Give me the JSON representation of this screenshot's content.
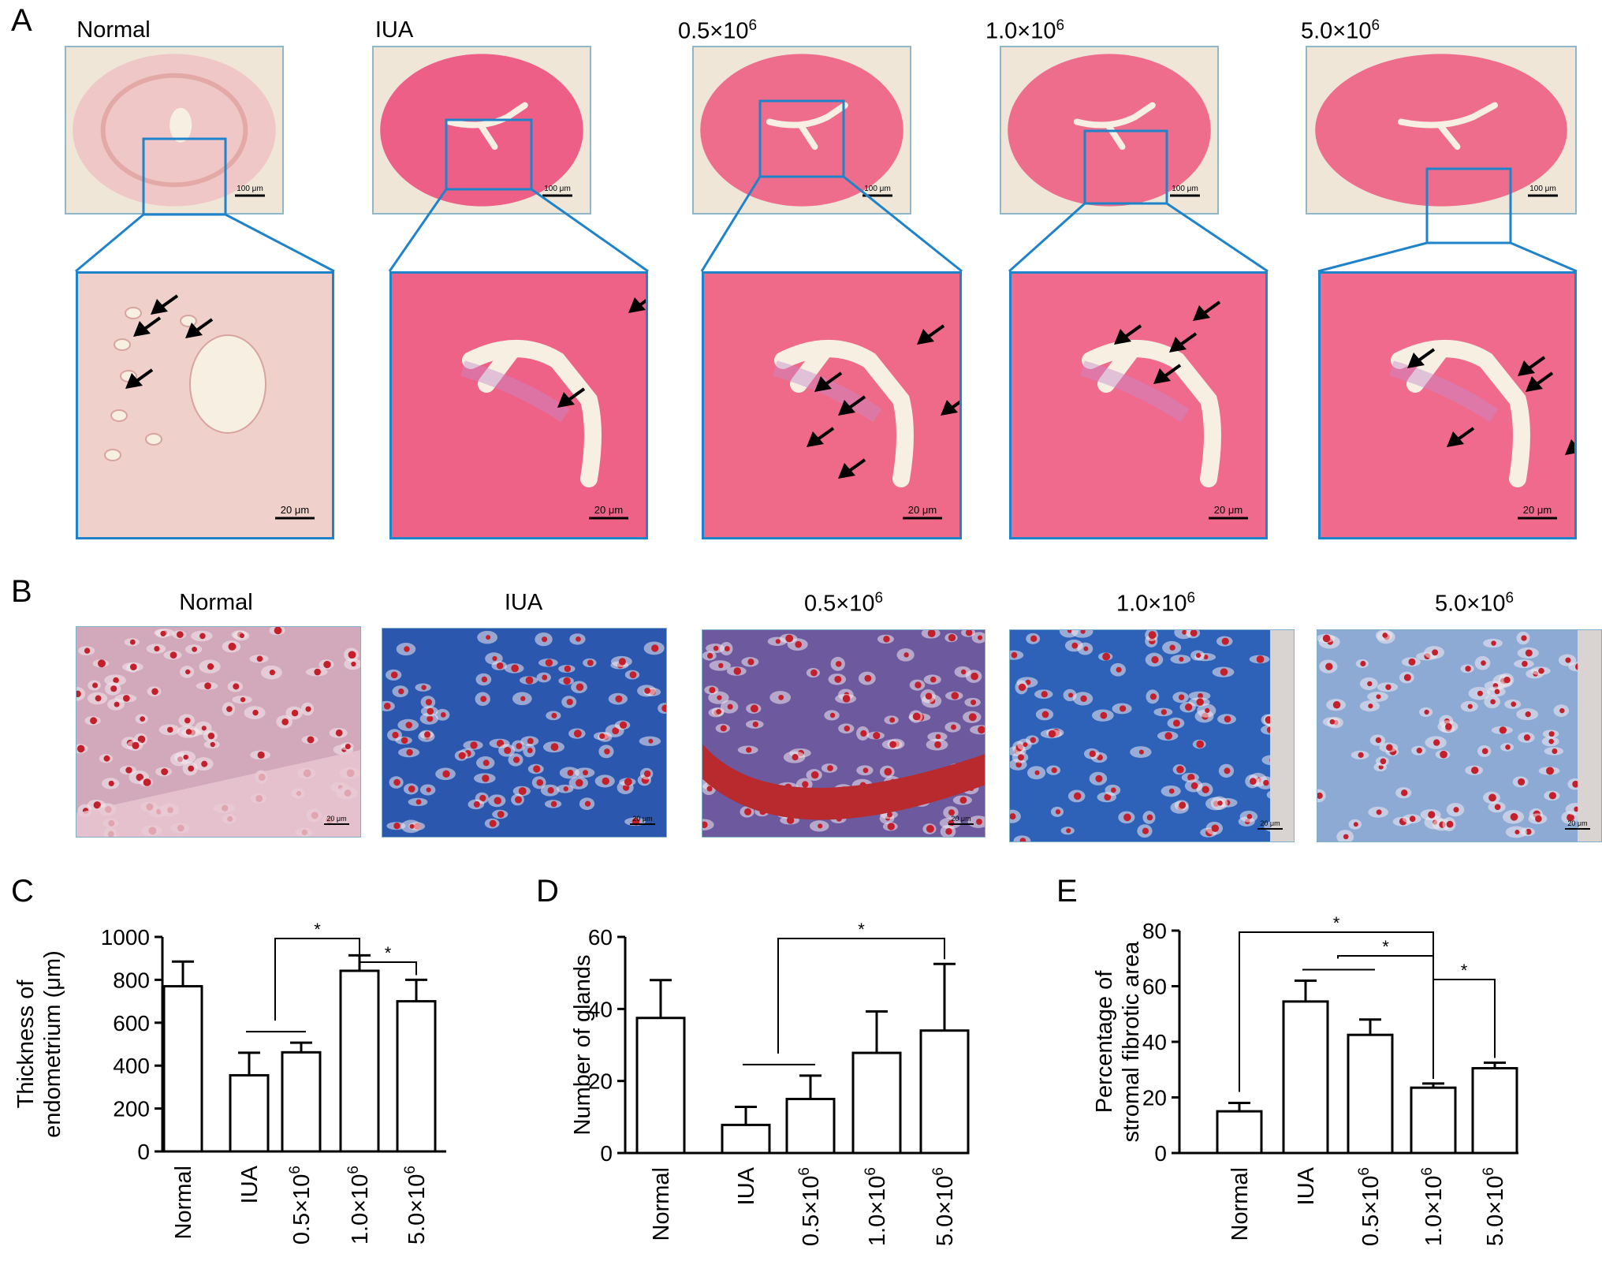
{
  "panels": {
    "a": {
      "letter": "A",
      "scale_overview": "100 μm",
      "scale_zoom": "20 μm"
    },
    "b": {
      "letter": "B",
      "scale": "20 μm"
    },
    "c": {
      "letter": "C"
    },
    "d": {
      "letter": "D"
    },
    "e": {
      "letter": "E"
    }
  },
  "groups": [
    {
      "base": "Normal",
      "exp": ""
    },
    {
      "base": "IUA",
      "exp": ""
    },
    {
      "base": "0.5×10",
      "exp": "6"
    },
    {
      "base": "1.0×10",
      "exp": "6"
    },
    {
      "base": "5.0×10",
      "exp": "6"
    }
  ],
  "colors": {
    "he_normal": "#efc7c6",
    "he_iua": "#ee5f87",
    "he_pink": "#ef6d8c",
    "lumen": "#f6efe2",
    "zoom_border": "#1f83c9",
    "collagen_blue": "#1f5bb5",
    "cell_red": "#c4202c",
    "epithelium_red": "#b82a2e"
  },
  "chart_data": [
    {
      "type": "bar",
      "panel": "C",
      "ylabel_lines": [
        "Thickness of",
        "endometrium (μm)"
      ],
      "categories": [
        "Normal",
        "IUA",
        "0.5×10",
        "1.0×10",
        "5.0×10"
      ],
      "category_exp": [
        "",
        "",
        "6",
        "6",
        "6"
      ],
      "values": [
        770,
        355,
        462,
        842,
        700
      ],
      "errors": [
        115,
        105,
        45,
        72,
        100
      ],
      "ylim": [
        0,
        1000
      ],
      "yticks": [
        0,
        200,
        400,
        600,
        800,
        1000
      ],
      "significance": [
        {
          "from": 1,
          "to": 3,
          "label": "*"
        },
        {
          "from": 3,
          "to": 4,
          "label": "*"
        }
      ],
      "group_line": [
        1,
        2
      ]
    },
    {
      "type": "bar",
      "panel": "D",
      "ylabel_lines": [
        "Number of glands"
      ],
      "categories": [
        "Normal",
        "IUA",
        "0.5×10",
        "1.0×10",
        "5.0×10"
      ],
      "category_exp": [
        "",
        "",
        "6",
        "6",
        "6"
      ],
      "values": [
        37.5,
        7.8,
        15.0,
        27.8,
        34.0
      ],
      "errors": [
        10.5,
        5.0,
        6.5,
        11.5,
        18.5
      ],
      "ylim": [
        0,
        60
      ],
      "yticks": [
        0,
        20,
        40,
        60
      ],
      "significance": [
        {
          "from": 1,
          "to": 4,
          "label": "*"
        }
      ],
      "group_line": [
        1,
        2
      ]
    },
    {
      "type": "bar",
      "panel": "E",
      "ylabel_lines": [
        "Percentage of",
        "stromal fibrotic area"
      ],
      "categories": [
        "Normal",
        "IUA",
        "0.5×10",
        "1.0×10",
        "5.0×10"
      ],
      "category_exp": [
        "",
        "",
        "6",
        "6",
        "6"
      ],
      "values": [
        15.0,
        54.5,
        42.5,
        23.5,
        30.5
      ],
      "errors": [
        3.0,
        7.5,
        5.5,
        1.5,
        2.0
      ],
      "ylim": [
        0,
        80
      ],
      "yticks": [
        0,
        20,
        40,
        60,
        80
      ],
      "significance": [
        {
          "from": 0,
          "to": 3,
          "label": "*"
        },
        {
          "from": 1,
          "to": 3,
          "label": "*"
        },
        {
          "from": 3,
          "to": 4,
          "label": "*"
        }
      ],
      "group_line": [
        1,
        2
      ]
    }
  ]
}
